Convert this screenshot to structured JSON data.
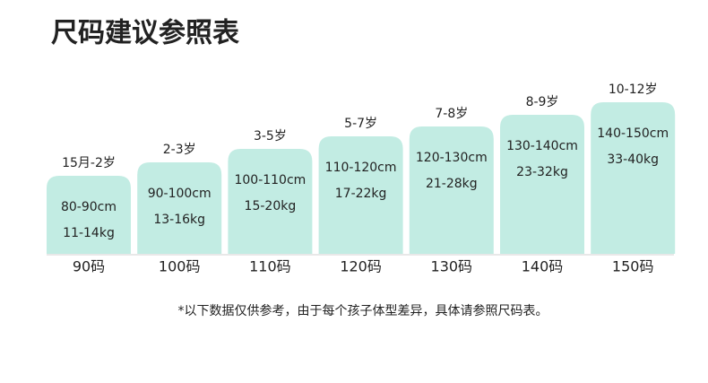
{
  "header": {
    "title": "尺码建议参照表"
  },
  "sizes": [
    {
      "age": "15月-2岁",
      "height": "80-90cm",
      "weight": "11-14kg",
      "size": "90码"
    },
    {
      "age": "2-3岁",
      "height": "90-100cm",
      "weight": "13-16kg",
      "size": "100码"
    },
    {
      "age": "3-5岁",
      "height": "100-110cm",
      "weight": "15-20kg",
      "size": "110码"
    },
    {
      "age": "5-7岁",
      "height": "110-120cm",
      "weight": "17-22kg",
      "size": "120码"
    },
    {
      "age": "7-8岁",
      "height": "120-130cm",
      "weight": "21-28kg",
      "size": "130码"
    },
    {
      "age": "8-9岁",
      "height": "130-140cm",
      "weight": "23-32kg",
      "size": "140码"
    },
    {
      "age": "10-12岁",
      "height": "140-150cm",
      "weight": "33-40kg",
      "size": "150码"
    }
  ],
  "note": "*以下数据仅供参考，由于每个孩子体型差异，具体请参照尺码表。"
}
